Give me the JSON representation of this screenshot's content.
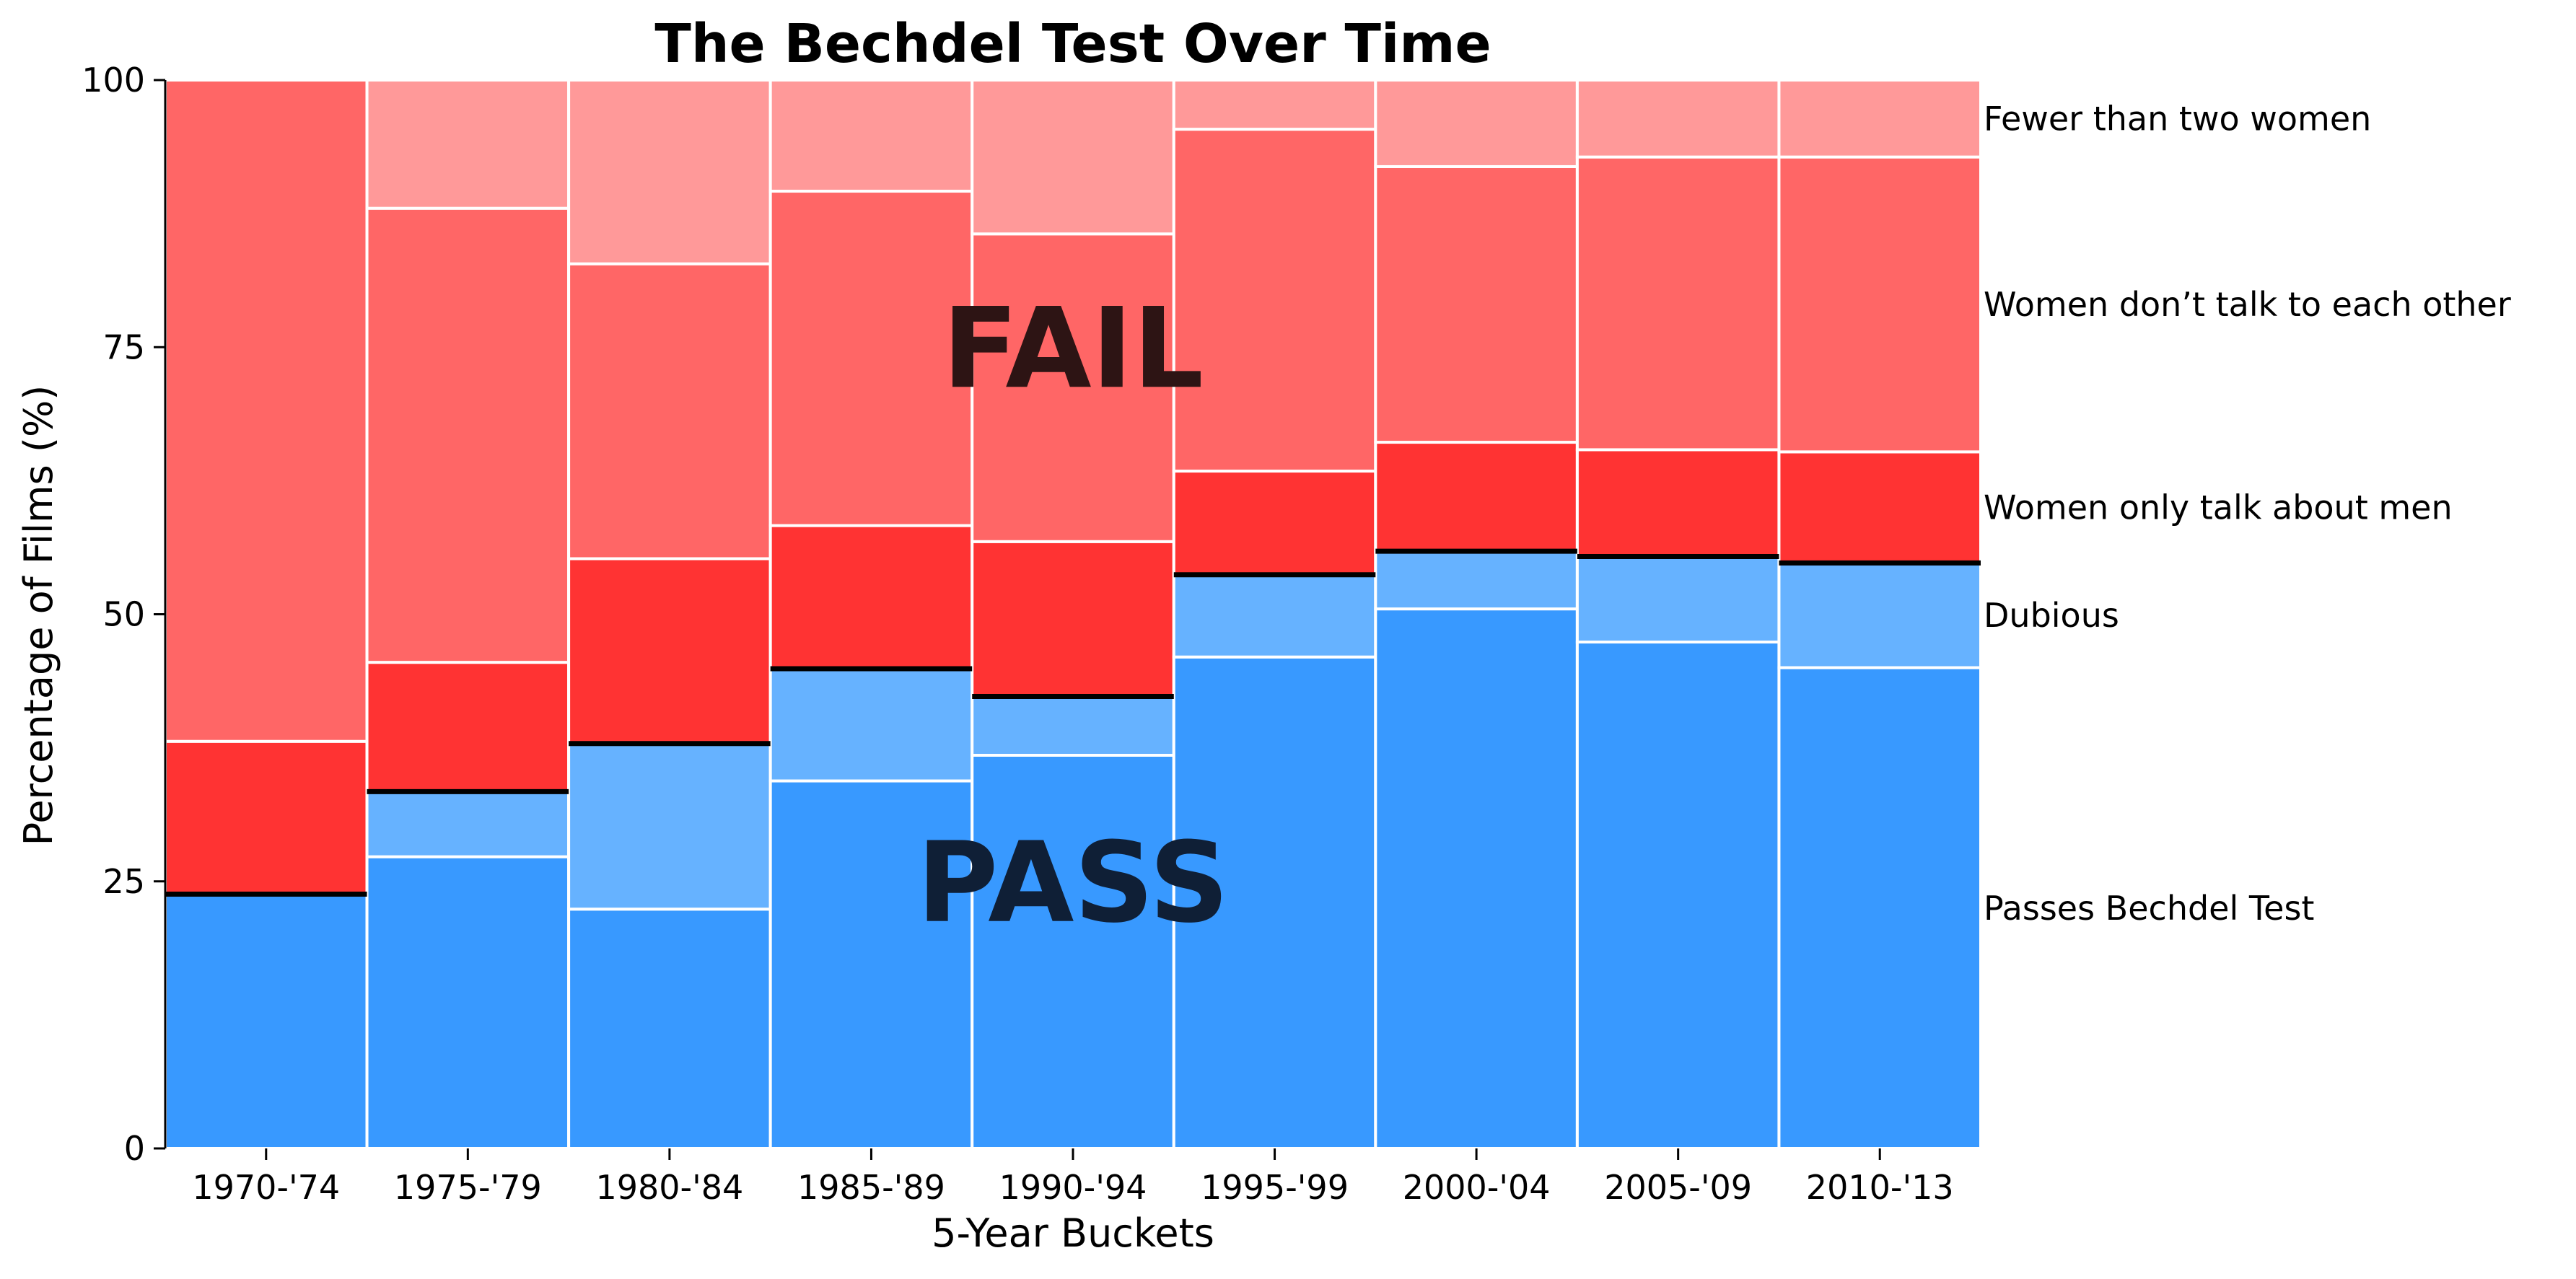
{
  "chart_data": {
    "type": "bar",
    "stacked": true,
    "title": "The Bechdel Test Over Time",
    "xlabel": "5-Year Buckets",
    "ylabel": "Percentage of Films (%)",
    "ylim": [
      0,
      100
    ],
    "yticks": [
      0,
      25,
      50,
      75,
      100
    ],
    "grid": false,
    "legend_placement": "right (labels aligned to last bar)",
    "categories": [
      "1970-'74",
      "1975-'79",
      "1980-'84",
      "1985-'89",
      "1990-'94",
      "1995-'99",
      "2000-'04",
      "2005-'09",
      "2010-'13"
    ],
    "series": [
      {
        "name": "Passes Bechdel Test",
        "color": "#3899ff",
        "values": [
          23.8,
          27.3,
          22.4,
          34.4,
          36.8,
          46.0,
          50.5,
          47.4,
          45.0
        ]
      },
      {
        "name": "Dubious",
        "color": "#66b2ff",
        "values": [
          0.0,
          6.1,
          15.5,
          10.5,
          5.5,
          7.7,
          5.4,
          8.0,
          9.8
        ]
      },
      {
        "name": "Women only talk about men",
        "color": "#ff3333",
        "values": [
          14.3,
          12.1,
          17.3,
          13.4,
          14.5,
          9.7,
          10.2,
          10.0,
          10.4
        ]
      },
      {
        "name": "Women don’t talk to each other",
        "color": "#ff6666",
        "values": [
          61.9,
          42.5,
          27.6,
          31.3,
          28.8,
          32.0,
          25.8,
          27.4,
          27.6
        ]
      },
      {
        "name": "Fewer than two women",
        "color": "#ff9999",
        "values": [
          0.0,
          12.0,
          17.2,
          10.4,
          14.4,
          4.6,
          8.1,
          7.2,
          7.2
        ]
      }
    ],
    "pass_fail_divider_color": "#000000",
    "annotations": [
      {
        "text": "FAIL",
        "x_category": "1990-'94",
        "y": 75
      },
      {
        "text": "PASS",
        "x_category": "1990-'94",
        "y": 25
      }
    ]
  }
}
